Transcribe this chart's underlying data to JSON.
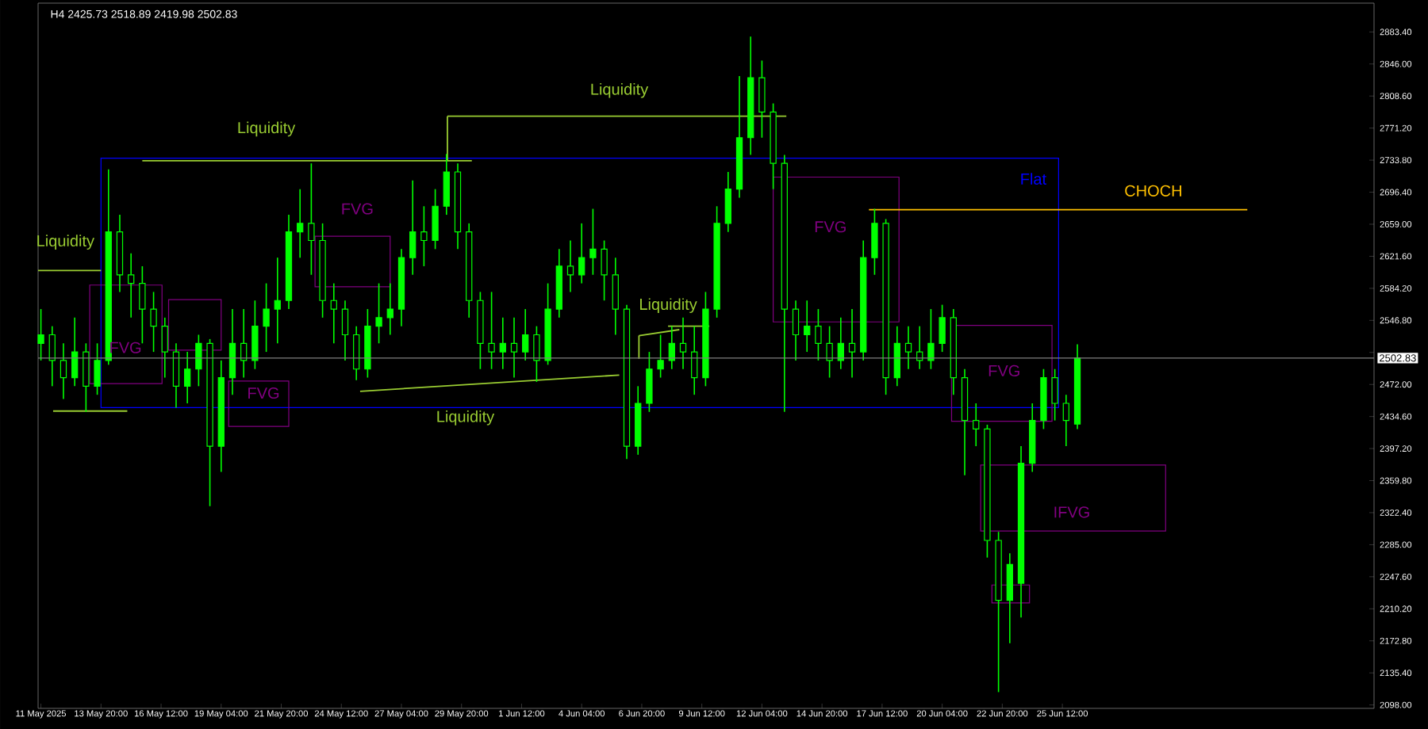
{
  "chart_data": {
    "type": "candlestick",
    "title": "H4  2425.73 2518.89 2419.98 2502.83",
    "color": "#00ff00",
    "x": [
      "2025-05-11T04:00",
      "2025-05-11T16:00",
      "2025-05-12T04:00",
      "2025-05-12T16:00",
      "2025-05-13T04:00",
      "2025-05-13T16:00",
      "2025-05-14T04:00",
      "2025-05-14T16:00",
      "2025-05-15T04:00",
      "2025-05-15T16:00",
      "2025-05-16T04:00",
      "2025-05-16T16:00",
      "2025-05-17T04:00",
      "2025-05-17T16:00",
      "2025-05-18T04:00",
      "2025-05-18T16:00",
      "2025-05-19T04:00",
      "2025-05-19T16:00",
      "2025-05-20T04:00",
      "2025-05-20T16:00",
      "2025-05-21T04:00",
      "2025-05-21T16:00",
      "2025-05-22T04:00",
      "2025-05-22T16:00",
      "2025-05-23T04:00",
      "2025-05-23T16:00",
      "2025-05-24T04:00",
      "2025-05-24T16:00",
      "2025-05-25T04:00",
      "2025-05-25T16:00",
      "2025-05-26T04:00",
      "2025-05-26T16:00",
      "2025-05-27T04:00",
      "2025-05-27T16:00",
      "2025-05-28T04:00",
      "2025-05-28T16:00",
      "2025-05-29T04:00",
      "2025-05-29T16:00",
      "2025-05-30T04:00",
      "2025-05-30T16:00",
      "2025-05-31T04:00",
      "2025-05-31T16:00",
      "2025-06-01T04:00",
      "2025-06-01T16:00",
      "2025-06-02T04:00",
      "2025-06-02T16:00",
      "2025-06-03T04:00",
      "2025-06-03T16:00",
      "2025-06-04T04:00",
      "2025-06-04T16:00",
      "2025-06-05T04:00",
      "2025-06-05T16:00",
      "2025-06-06T04:00",
      "2025-06-06T16:00",
      "2025-06-07T04:00",
      "2025-06-07T16:00",
      "2025-06-08T04:00",
      "2025-06-08T16:00",
      "2025-06-09T04:00",
      "2025-06-09T16:00",
      "2025-06-10T04:00",
      "2025-06-10T16:00",
      "2025-06-11T04:00",
      "2025-06-11T16:00",
      "2025-06-12T04:00",
      "2025-06-12T16:00",
      "2025-06-13T04:00",
      "2025-06-13T16:00",
      "2025-06-14T04:00",
      "2025-06-14T16:00",
      "2025-06-15T04:00",
      "2025-06-15T16:00",
      "2025-06-16T04:00",
      "2025-06-16T16:00",
      "2025-06-17T04:00",
      "2025-06-17T16:00",
      "2025-06-18T04:00",
      "2025-06-18T16:00",
      "2025-06-19T04:00",
      "2025-06-19T16:00",
      "2025-06-20T04:00",
      "2025-06-20T16:00",
      "2025-06-21T04:00",
      "2025-06-21T16:00",
      "2025-06-22T04:00",
      "2025-06-22T16:00",
      "2025-06-23T04:00",
      "2025-06-23T16:00",
      "2025-06-24T04:00",
      "2025-06-24T16:00",
      "2025-06-25T04:00",
      "2025-06-25T16:00",
      "2025-06-26T04:00"
    ],
    "ohlc": [
      [
        2520,
        2560,
        2500,
        2530
      ],
      [
        2530,
        2540,
        2470,
        2500
      ],
      [
        2500,
        2520,
        2455,
        2480
      ],
      [
        2480,
        2550,
        2470,
        2510
      ],
      [
        2510,
        2520,
        2440,
        2470
      ],
      [
        2470,
        2520,
        2460,
        2500
      ],
      [
        2500,
        2723,
        2495,
        2650
      ],
      [
        2650,
        2670,
        2580,
        2600
      ],
      [
        2600,
        2625,
        2550,
        2590
      ],
      [
        2590,
        2610,
        2520,
        2560
      ],
      [
        2560,
        2580,
        2510,
        2540
      ],
      [
        2540,
        2550,
        2480,
        2510
      ],
      [
        2510,
        2520,
        2445,
        2470
      ],
      [
        2470,
        2510,
        2450,
        2490
      ],
      [
        2490,
        2530,
        2470,
        2520
      ],
      [
        2520,
        2525,
        2330,
        2400
      ],
      [
        2400,
        2500,
        2370,
        2480
      ],
      [
        2480,
        2560,
        2460,
        2520
      ],
      [
        2520,
        2560,
        2480,
        2500
      ],
      [
        2500,
        2570,
        2490,
        2540
      ],
      [
        2540,
        2590,
        2510,
        2560
      ],
      [
        2560,
        2620,
        2520,
        2570
      ],
      [
        2570,
        2670,
        2560,
        2650
      ],
      [
        2650,
        2700,
        2620,
        2660
      ],
      [
        2660,
        2730,
        2600,
        2640
      ],
      [
        2640,
        2660,
        2550,
        2570
      ],
      [
        2570,
        2590,
        2520,
        2560
      ],
      [
        2560,
        2570,
        2500,
        2530
      ],
      [
        2530,
        2540,
        2477,
        2490
      ],
      [
        2490,
        2560,
        2480,
        2540
      ],
      [
        2540,
        2590,
        2520,
        2550
      ],
      [
        2550,
        2590,
        2530,
        2560
      ],
      [
        2560,
        2630,
        2540,
        2620
      ],
      [
        2620,
        2710,
        2600,
        2650
      ],
      [
        2650,
        2680,
        2610,
        2640
      ],
      [
        2640,
        2700,
        2630,
        2680
      ],
      [
        2680,
        2741,
        2670,
        2720
      ],
      [
        2720,
        2730,
        2630,
        2650
      ],
      [
        2650,
        2660,
        2550,
        2570
      ],
      [
        2570,
        2580,
        2490,
        2520
      ],
      [
        2520,
        2580,
        2490,
        2510
      ],
      [
        2510,
        2550,
        2490,
        2520
      ],
      [
        2520,
        2550,
        2480,
        2510
      ],
      [
        2510,
        2560,
        2500,
        2530
      ],
      [
        2530,
        2540,
        2475,
        2500
      ],
      [
        2500,
        2590,
        2495,
        2560
      ],
      [
        2560,
        2630,
        2550,
        2610
      ],
      [
        2610,
        2640,
        2580,
        2600
      ],
      [
        2600,
        2660,
        2590,
        2620
      ],
      [
        2620,
        2677,
        2600,
        2630
      ],
      [
        2630,
        2640,
        2570,
        2600
      ],
      [
        2600,
        2620,
        2530,
        2560
      ],
      [
        2560,
        2565,
        2385,
        2400
      ],
      [
        2400,
        2470,
        2390,
        2450
      ],
      [
        2450,
        2510,
        2440,
        2490
      ],
      [
        2490,
        2530,
        2480,
        2500
      ],
      [
        2500,
        2540,
        2490,
        2520
      ],
      [
        2520,
        2550,
        2490,
        2510
      ],
      [
        2510,
        2540,
        2460,
        2480
      ],
      [
        2480,
        2580,
        2470,
        2560
      ],
      [
        2560,
        2680,
        2550,
        2660
      ],
      [
        2660,
        2720,
        2650,
        2700
      ],
      [
        2700,
        2832,
        2690,
        2760
      ],
      [
        2760,
        2878,
        2740,
        2830
      ],
      [
        2830,
        2850,
        2760,
        2790
      ],
      [
        2790,
        2800,
        2700,
        2730
      ],
      [
        2730,
        2740,
        2440,
        2560
      ],
      [
        2560,
        2570,
        2500,
        2530
      ],
      [
        2530,
        2570,
        2510,
        2540
      ],
      [
        2540,
        2560,
        2500,
        2520
      ],
      [
        2520,
        2540,
        2480,
        2500
      ],
      [
        2500,
        2550,
        2490,
        2520
      ],
      [
        2520,
        2560,
        2480,
        2510
      ],
      [
        2510,
        2640,
        2500,
        2620
      ],
      [
        2620,
        2677,
        2600,
        2660
      ],
      [
        2660,
        2665,
        2460,
        2480
      ],
      [
        2480,
        2540,
        2470,
        2520
      ],
      [
        2520,
        2540,
        2490,
        2510
      ],
      [
        2510,
        2540,
        2490,
        2500
      ],
      [
        2500,
        2560,
        2490,
        2520
      ],
      [
        2520,
        2565,
        2510,
        2550
      ],
      [
        2550,
        2560,
        2460,
        2480
      ],
      [
        2480,
        2490,
        2366,
        2430
      ],
      [
        2430,
        2450,
        2400,
        2420
      ],
      [
        2420,
        2425,
        2270,
        2290
      ],
      [
        2290,
        2300,
        2113,
        2220
      ],
      [
        2220,
        2275,
        2170,
        2262
      ],
      [
        2240,
        2400,
        2200,
        2380
      ],
      [
        2380,
        2450,
        2370,
        2430
      ],
      [
        2430,
        2490,
        2420,
        2480
      ],
      [
        2480,
        2490,
        2430,
        2450
      ],
      [
        2450,
        2460,
        2400,
        2430
      ],
      [
        2425.73,
        2518.89,
        2419.98,
        2502.83
      ]
    ],
    "series": [
      {
        "type": "line",
        "color": "#9acd32",
        "x": [
          "2025-05-15T16:00",
          "2025-05-30T07:00"
        ],
        "values": [
          2733,
          2733
        ]
      },
      {
        "type": "line",
        "color": "#9acd32",
        "x": [
          "2025-05-11T01:00",
          "2025-05-13T20:00"
        ],
        "values": [
          2605,
          2605
        ]
      },
      {
        "type": "line",
        "color": "#9acd32",
        "x": [
          "2025-05-11T17:00",
          "2025-05-15T00:00"
        ],
        "values": [
          2441,
          2441
        ]
      },
      {
        "type": "line",
        "color": "#9acd32",
        "x": [
          "2025-05-25T08:00",
          "2025-06-05T20:00"
        ],
        "values": [
          2464,
          2483
        ]
      },
      {
        "type": "line",
        "color": "#9acd32",
        "x": [
          "2025-05-29T05:00",
          "2025-06-13T06:00"
        ],
        "values": [
          2785,
          2785
        ]
      },
      {
        "type": "line",
        "color": "#9acd32",
        "x": [
          "2025-06-06T17:00",
          "2025-06-08T12:00"
        ],
        "values": [
          2529,
          2536
        ]
      },
      {
        "type": "line",
        "color": "#9acd32",
        "x": [
          "2025-06-08T00:00",
          "2025-06-09T20:00"
        ],
        "values": [
          2540,
          2540
        ]
      },
      {
        "type": "line",
        "color": "#ffc000",
        "x": [
          "2025-06-16T22:00",
          "2025-07-03T17:00"
        ],
        "values": [
          2676,
          2676
        ]
      }
    ],
    "ref_lines": [
      {
        "axis": "y",
        "value": 2502.83,
        "label": "2502.83",
        "color": "#808080"
      }
    ],
    "annotations": [
      "Liquidity",
      "Liquidity",
      "Liquidity",
      "Liquidity",
      "Liquidity",
      "FVG",
      "FVG",
      "FVG",
      "FVG",
      "FVG",
      "IFVG",
      "Flat",
      "CHOCH"
    ],
    "xlim": [
      "2025-05-11T01:00",
      "2025-07-09T08:00"
    ],
    "xticks": [
      {
        "value": "2025-05-11T04:00",
        "label": "11 May 2025"
      },
      {
        "value": "2025-05-13T20:00",
        "label": "13 May 20:00"
      },
      {
        "value": "2025-05-16T12:00",
        "label": "16 May 12:00"
      },
      {
        "value": "2025-05-19T04:00",
        "label": "19 May 04:00"
      },
      {
        "value": "2025-05-21T20:00",
        "label": "21 May 20:00"
      },
      {
        "value": "2025-05-24T12:00",
        "label": "24 May 12:00"
      },
      {
        "value": "2025-05-27T04:00",
        "label": "27 May 04:00"
      },
      {
        "value": "2025-05-29T20:00",
        "label": "29 May 20:00"
      },
      {
        "value": "2025-06-01T12:00",
        "label": "1 Jun 12:00"
      },
      {
        "value": "2025-06-04T04:00",
        "label": "4 Jun 04:00"
      },
      {
        "value": "2025-06-06T20:00",
        "label": "6 Jun 20:00"
      },
      {
        "value": "2025-06-09T12:00",
        "label": "9 Jun 12:00"
      },
      {
        "value": "2025-06-12T04:00",
        "label": "12 Jun 04:00"
      },
      {
        "value": "2025-06-14T20:00",
        "label": "14 Jun 20:00"
      },
      {
        "value": "2025-06-17T12:00",
        "label": "17 Jun 12:00"
      },
      {
        "value": "2025-06-20T04:00",
        "label": "20 Jun 04:00"
      },
      {
        "value": "2025-06-22T20:00",
        "label": "22 Jun 20:00"
      },
      {
        "value": "2025-06-25T12:00",
        "label": "25 Jun 12:00"
      }
    ],
    "ylim": [
      2094,
      2917
    ],
    "yticks": [
      {
        "value": 2098.0,
        "label": "2098.00"
      },
      {
        "value": 2135.4,
        "label": "2135.40"
      },
      {
        "value": 2172.8,
        "label": "2172.80"
      },
      {
        "value": 2210.2,
        "label": "2210.20"
      },
      {
        "value": 2247.6,
        "label": "2247.60"
      },
      {
        "value": 2285.0,
        "label": "2285.00"
      },
      {
        "value": 2322.4,
        "label": "2322.40"
      },
      {
        "value": 2359.8,
        "label": "2359.80"
      },
      {
        "value": 2397.2,
        "label": "2397.20"
      },
      {
        "value": 2434.6,
        "label": "2434.60"
      },
      {
        "value": 2472.0,
        "label": "2472.00"
      },
      {
        "value": 2509.4,
        "label": null
      },
      {
        "value": 2546.8,
        "label": "2546.80"
      },
      {
        "value": 2584.2,
        "label": "2584.20"
      },
      {
        "value": 2621.6,
        "label": "2621.60"
      },
      {
        "value": 2659.0,
        "label": "2659.00"
      },
      {
        "value": 2696.4,
        "label": "2696.40"
      },
      {
        "value": 2733.8,
        "label": "2733.80"
      },
      {
        "value": 2771.2,
        "label": "2771.20"
      },
      {
        "value": 2808.6,
        "label": "2808.60"
      },
      {
        "value": 2846.0,
        "label": "2846.00"
      },
      {
        "value": 2883.4,
        "label": "2883.40"
      }
    ]
  }
}
